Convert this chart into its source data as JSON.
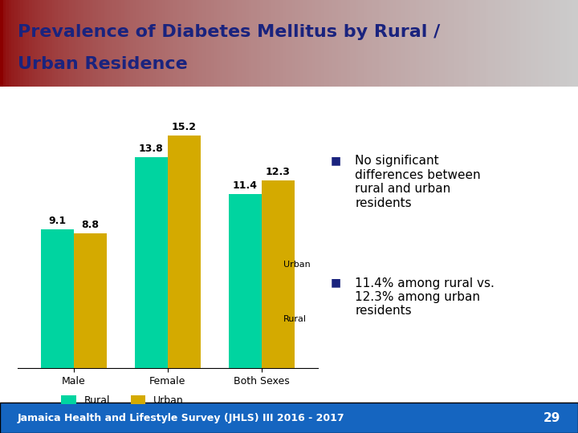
{
  "title_line1": "Prevalence of Diabetes Mellitus by Rural /",
  "title_line2": "Urban Residence",
  "categories": [
    "Male",
    "Female",
    "Both Sexes"
  ],
  "rural_values": [
    9.1,
    13.8,
    11.4
  ],
  "urban_values": [
    8.8,
    15.2,
    12.3
  ],
  "rural_color": "#00D4A0",
  "urban_color": "#D4AA00",
  "bar_width": 0.35,
  "title_text_color": "#1a237e",
  "footer_bg": "#1565C0",
  "footer_text": "Jamaica Health and Lifestyle Survey (JHLS) III 2016 - 2017",
  "footer_page": "29",
  "bullet_color": "#1a237e",
  "bullet1_line1": "No significant",
  "bullet1_line2": "differences between",
  "bullet1_line3": "rural and urban",
  "bullet1_line4": "residents",
  "bullet2_line1": "11.4% among rural vs.",
  "bullet2_line2": "12.3% among urban",
  "bullet2_line3": "residents",
  "body_bg": "#FFFFFF",
  "ylim": [
    0,
    17
  ],
  "bar_label_fontsize": 9,
  "axis_label_fontsize": 9,
  "legend_fontsize": 9,
  "annotation_rural": "Rural",
  "annotation_urban": "Urban"
}
